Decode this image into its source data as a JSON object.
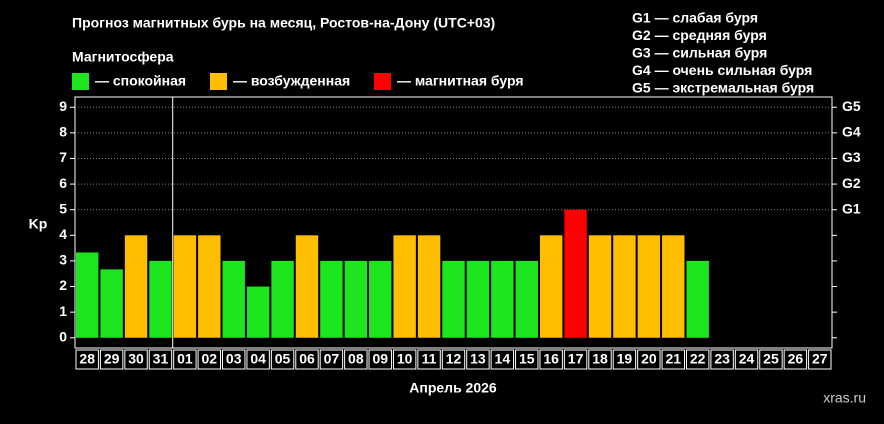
{
  "chart_data": {
    "type": "bar",
    "title": "Прогноз магнитных бурь на месяц, Ростов-на-Дону (UTC+03)",
    "subtitle": "Магнитосфера",
    "legend": [
      {
        "label": "— спокойная",
        "color": "#1ee61e"
      },
      {
        "label": "— возбужденная",
        "color": "#ffbf00"
      },
      {
        "label": "— магнитная буря",
        "color": "#ff0000"
      }
    ],
    "notes": [
      "G1 — слабая буря",
      "G2 — средняя буря",
      "G3 — сильная буря",
      "G4 — очень сильная буря",
      "G5 — экстремальная буря"
    ],
    "x_label": "Апрель 2026",
    "y_label": "Kp",
    "watermark": "xras.ru",
    "categories": [
      "28",
      "29",
      "30",
      "31",
      "01",
      "02",
      "03",
      "04",
      "05",
      "06",
      "07",
      "08",
      "09",
      "10",
      "11",
      "12",
      "13",
      "14",
      "15",
      "16",
      "17",
      "18",
      "19",
      "20",
      "21",
      "22",
      "23",
      "24",
      "25",
      "26",
      "27"
    ],
    "values": [
      3.33,
      2.67,
      4,
      3,
      4,
      4,
      3,
      2,
      3,
      4,
      3,
      3,
      3,
      4,
      4,
      3,
      3,
      3,
      3,
      4,
      5,
      4,
      4,
      4,
      4,
      3,
      null,
      null,
      null,
      null,
      null
    ],
    "colors": [
      "#1ee61e",
      "#1ee61e",
      "#ffbf00",
      "#1ee61e",
      "#ffbf00",
      "#ffbf00",
      "#1ee61e",
      "#1ee61e",
      "#1ee61e",
      "#ffbf00",
      "#1ee61e",
      "#1ee61e",
      "#1ee61e",
      "#ffbf00",
      "#ffbf00",
      "#1ee61e",
      "#1ee61e",
      "#1ee61e",
      "#1ee61e",
      "#ffbf00",
      "#ff0000",
      "#ffbf00",
      "#ffbf00",
      "#ffbf00",
      "#ffbf00",
      "#1ee61e",
      null,
      null,
      null,
      null,
      null
    ],
    "ylim": [
      -0.4,
      9.4
    ],
    "yticks": [
      0,
      1,
      2,
      3,
      4,
      5,
      6,
      7,
      8,
      9
    ],
    "y2lim": [
      -0.4,
      9.4
    ],
    "y2ticks": [
      {
        "value": 5,
        "label": "G1"
      },
      {
        "value": 6,
        "label": "G2"
      },
      {
        "value": 7,
        "label": "G3"
      },
      {
        "value": 8,
        "label": "G4"
      },
      {
        "value": 9,
        "label": "G5"
      }
    ],
    "grid": true
  }
}
